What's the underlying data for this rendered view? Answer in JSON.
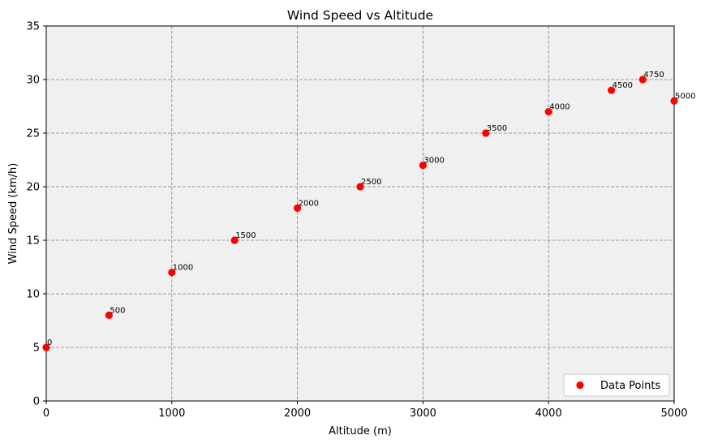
{
  "chart_data": {
    "type": "scatter",
    "title": "Wind Speed vs Altitude",
    "xlabel": "Altitude (m)",
    "ylabel": "Wind Speed (km/h)",
    "xlim": [
      0,
      5000
    ],
    "ylim": [
      0,
      35
    ],
    "xticks": [
      0,
      1000,
      2000,
      3000,
      4000,
      5000
    ],
    "yticks": [
      0,
      5,
      10,
      15,
      20,
      25,
      30,
      35
    ],
    "grid": true,
    "legend": {
      "position": "bottom-right",
      "label": "Data Points"
    },
    "series": [
      {
        "name": "Data Points",
        "color": "#ff0000",
        "x": [
          0,
          500,
          1000,
          1500,
          2000,
          2500,
          3000,
          3500,
          4000,
          4500,
          4750,
          5000
        ],
        "y": [
          5,
          8,
          12,
          15,
          18,
          20,
          22,
          25,
          27,
          29,
          30,
          28
        ],
        "labels": [
          "0",
          "500",
          "1000",
          "1500",
          "2000",
          "2500",
          "3000",
          "3500",
          "4000",
          "4500",
          "4750",
          "5000"
        ]
      }
    ],
    "colors": {
      "plot_background": "#f0f0f0",
      "grid": "#808080"
    }
  }
}
